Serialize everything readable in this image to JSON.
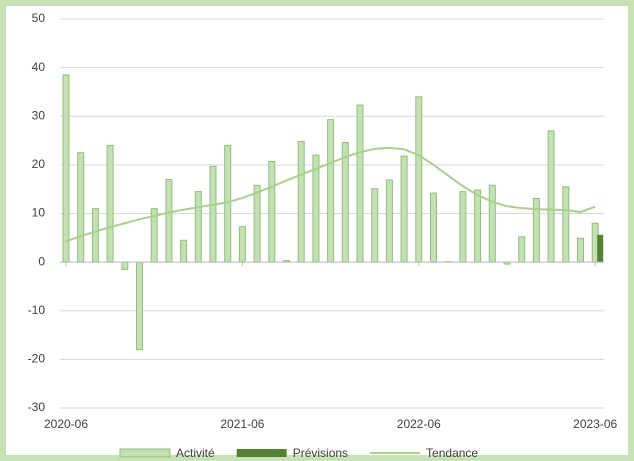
{
  "chart_data": {
    "type": "bar",
    "categories": [
      "2020-06",
      null,
      null,
      null,
      null,
      null,
      null,
      null,
      null,
      null,
      null,
      null,
      "2021-06",
      null,
      null,
      null,
      null,
      null,
      null,
      null,
      null,
      null,
      null,
      null,
      "2022-06",
      null,
      null,
      null,
      null,
      null,
      null,
      null,
      null,
      null,
      null,
      null,
      "2023-06"
    ],
    "series": [
      {
        "name": "Activité",
        "type": "bar",
        "color": "#c5e0b4",
        "stroke": "#8fc07a",
        "values": [
          38.5,
          22.5,
          11,
          24,
          -1.5,
          -18,
          11,
          17,
          4.5,
          14.5,
          19.7,
          24,
          7.3,
          15.8,
          20.7,
          0.3,
          24.8,
          22,
          29.3,
          24.6,
          32.3,
          15.1,
          16.9,
          21.8,
          34,
          14.2,
          0.1,
          14.5,
          14.8,
          15.8,
          -0.4,
          5.2,
          13.1,
          27,
          15.5,
          4.9,
          8
        ]
      },
      {
        "name": "Prévisions",
        "type": "bar",
        "color": "#548235",
        "values": [
          null,
          null,
          null,
          null,
          null,
          null,
          null,
          null,
          null,
          null,
          null,
          null,
          null,
          null,
          null,
          null,
          null,
          null,
          null,
          null,
          null,
          null,
          null,
          null,
          null,
          null,
          null,
          null,
          null,
          null,
          null,
          null,
          null,
          null,
          null,
          null,
          5.6
        ]
      },
      {
        "name": "Tendance",
        "type": "line",
        "color": "#a9d18e",
        "values": [
          4.3,
          5.3,
          6.3,
          7.2,
          8,
          8.8,
          9.5,
          10.2,
          10.8,
          11.3,
          11.8,
          12.3,
          13.2,
          14.3,
          15.5,
          16.8,
          18,
          19.2,
          20.4,
          21.6,
          22.6,
          23.3,
          23.5,
          23.2,
          22,
          20,
          17.8,
          15.6,
          13.8,
          12.4,
          11.5,
          11.1,
          10.9,
          10.8,
          10.7,
          10.3,
          11.4
        ]
      }
    ],
    "ylim": [
      -30,
      50
    ],
    "yticks": [
      -30,
      -20,
      -10,
      0,
      10,
      20,
      30,
      40,
      50
    ],
    "grid": true,
    "legend": "bottom"
  }
}
